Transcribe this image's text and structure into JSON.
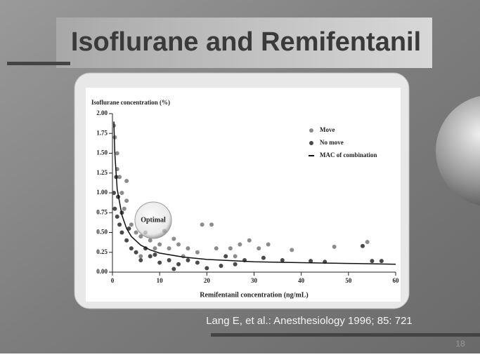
{
  "slide_title": "Isoflurane and Remifentanil",
  "citation": "Lang E, et al.: Anesthesiology 1996; 85: 721",
  "slide_number": "18",
  "chart_data": {
    "type": "scatter",
    "xlabel": "Remifentanil concentration (ng/mL)",
    "ylabel": "Isoflurane concentration (%)",
    "annotation": "Optimal",
    "legend": "upper right",
    "xlim": [
      0,
      60
    ],
    "ylim": [
      0,
      2
    ],
    "xticks": [
      0,
      10,
      20,
      30,
      40,
      50,
      60
    ],
    "yticks": [
      {
        "value": 0,
        "label": "0.00"
      },
      {
        "value": 0.25,
        "label": "0.25"
      },
      {
        "value": 0.5,
        "label": "0.50"
      },
      {
        "value": 0.75,
        "label": "0.75"
      },
      {
        "value": 1,
        "label": "1.00"
      },
      {
        "value": 1.25,
        "label": "1.25"
      },
      {
        "value": 1.5,
        "label": "1.50"
      },
      {
        "value": 1.75,
        "label": "1.75"
      },
      {
        "value": 2,
        "label": "2.00"
      }
    ],
    "series": [
      {
        "name": "Move",
        "color": "#8c8c8c",
        "type": "scatter",
        "x": [
          0.3,
          0.5,
          1,
          1.5,
          2,
          3,
          2.5,
          4,
          5,
          6,
          8,
          10,
          12,
          14,
          16,
          18,
          19,
          21,
          22,
          25,
          27,
          29,
          31,
          38,
          47,
          54,
          9,
          11,
          6,
          15,
          1,
          3,
          7,
          13,
          26,
          33
        ],
        "values": [
          1.85,
          1.7,
          1.5,
          1.2,
          1.0,
          1.15,
          0.8,
          0.6,
          0.5,
          0.45,
          0.4,
          0.35,
          0.3,
          0.35,
          0.3,
          0.25,
          0.6,
          0.6,
          0.3,
          0.3,
          0.35,
          0.4,
          0.3,
          0.28,
          0.32,
          0.38,
          0.3,
          0.52,
          0.2,
          0.2,
          1.3,
          0.9,
          0.5,
          0.42,
          0.2,
          0.35
        ]
      },
      {
        "name": "No move",
        "color": "#4a4a4a",
        "type": "scatter",
        "x": [
          0.3,
          0.5,
          1,
          1.5,
          2,
          3,
          4,
          5,
          6,
          8,
          10,
          12,
          14,
          16,
          18,
          20,
          23,
          26,
          28,
          32,
          36,
          42,
          45,
          53,
          55,
          57,
          13,
          24,
          2,
          3.5,
          7,
          9,
          1.2,
          0.8
        ],
        "values": [
          1.0,
          0.8,
          0.7,
          0.6,
          0.5,
          0.4,
          0.3,
          0.25,
          0.15,
          0.2,
          0.12,
          0.15,
          0.1,
          0.15,
          0.12,
          0.05,
          0.08,
          0.1,
          0.15,
          0.18,
          0.15,
          0.14,
          0.13,
          0.33,
          0.14,
          0.14,
          0.04,
          0.2,
          0.75,
          0.55,
          0.3,
          0.22,
          0.95,
          1.2
        ]
      },
      {
        "name": "MAC of combination",
        "color": "#111111",
        "type": "line",
        "x": [
          0.3,
          0.5,
          1,
          2,
          3,
          4,
          6,
          8,
          10,
          15,
          20,
          30,
          40,
          50,
          60
        ],
        "values": [
          1.9,
          1.5,
          1.05,
          0.72,
          0.55,
          0.45,
          0.34,
          0.28,
          0.24,
          0.19,
          0.16,
          0.13,
          0.12,
          0.11,
          0.1
        ]
      }
    ]
  }
}
